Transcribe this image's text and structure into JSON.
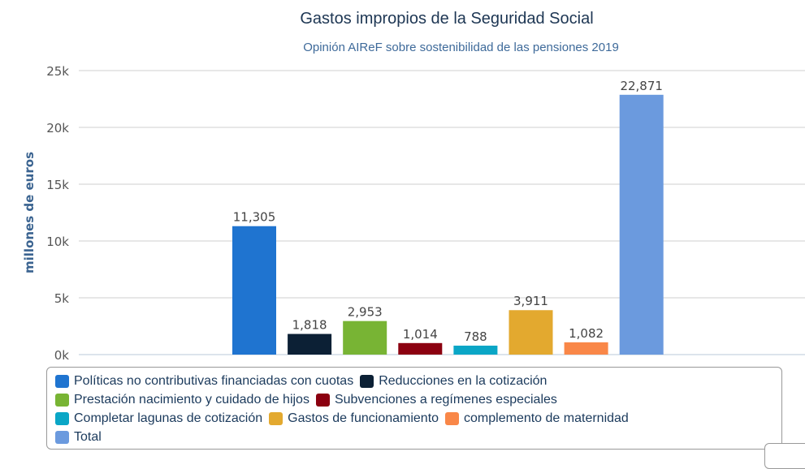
{
  "chart_data": {
    "type": "bar",
    "title": "Gastos impropios de la Seguridad Social",
    "subtitle": "Opinión AIReF sobre sostenibilidad de las pensiones 2019",
    "ylabel": "millones de euros",
    "xlabel": "",
    "ylim": [
      0,
      25000
    ],
    "yticks": [
      "0k",
      "5k",
      "10k",
      "15k",
      "20k",
      "25k"
    ],
    "grid": true,
    "legend_position": "bottom",
    "series": [
      {
        "name": "Políticas no contributivas financiadas con cuotas",
        "value": 11305,
        "label": "11,305",
        "color": "#1f74d0"
      },
      {
        "name": "Reducciones en la cotización",
        "value": 1818,
        "label": "1,818",
        "color": "#0c2035"
      },
      {
        "name": "Prestación nacimiento y cuidado de hijos",
        "value": 2953,
        "label": "2,953",
        "color": "#78b434"
      },
      {
        "name": "Subvenciones a regímenes especiales",
        "value": 1014,
        "label": "1,014",
        "color": "#8b0010"
      },
      {
        "name": "Completar lagunas de cotización",
        "value": 788,
        "label": "788",
        "color": "#0aa6c6"
      },
      {
        "name": "Gastos de funcionamiento",
        "value": 3911,
        "label": "3,911",
        "color": "#e3a92f"
      },
      {
        "name": "complemento de maternidad",
        "value": 1082,
        "label": "1,082",
        "color": "#f98748"
      },
      {
        "name": "Total",
        "value": 22871,
        "label": "22,871",
        "color": "#6b9ade"
      }
    ]
  }
}
